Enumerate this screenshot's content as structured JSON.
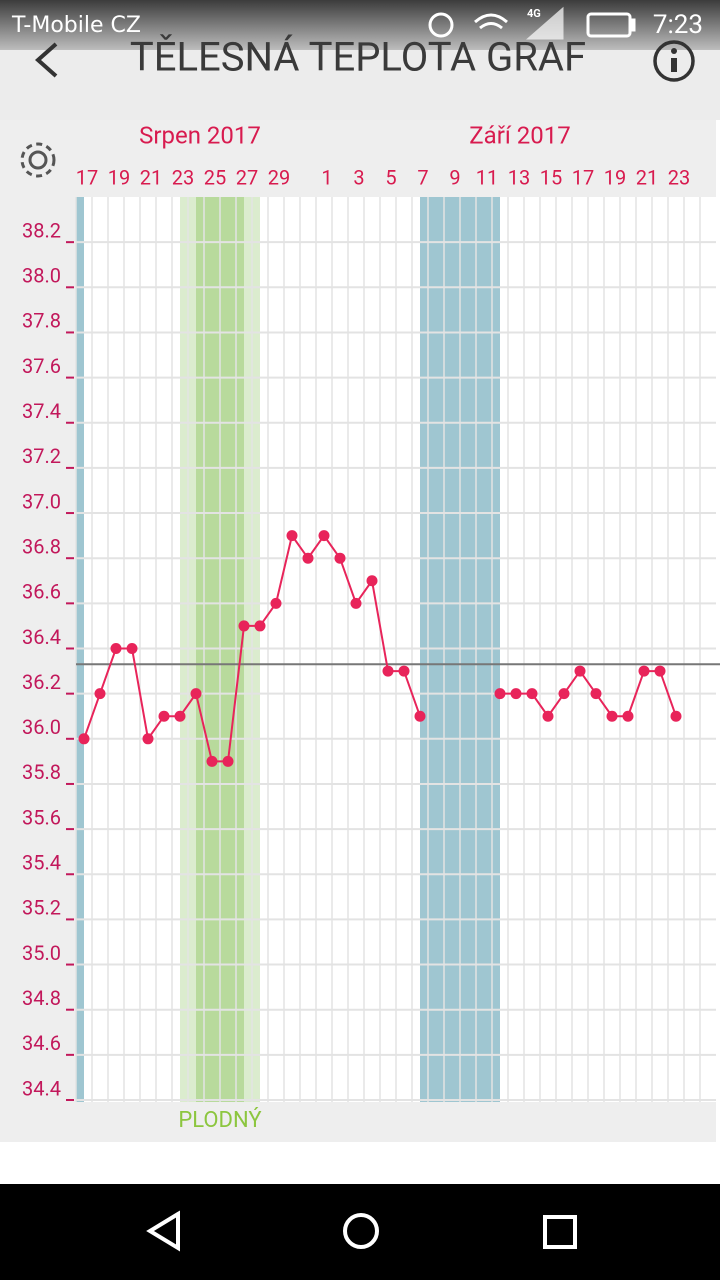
{
  "status_bar": {
    "carrier": "T-Mobile CZ",
    "network": "4G",
    "time": "7:23"
  },
  "header": {
    "title": "TĚLESNÁ TEPLOTA GRAF"
  },
  "chart_data": {
    "type": "line",
    "months": [
      {
        "label": "Srpen 2017",
        "index": 7
      },
      {
        "label": "Září 2017",
        "index": 27
      }
    ],
    "categories": [
      "17",
      null,
      "19",
      null,
      "21",
      null,
      "23",
      null,
      "25",
      null,
      "27",
      null,
      "29",
      null,
      null,
      "1",
      null,
      "3",
      null,
      "5",
      null,
      "7",
      null,
      "9",
      null,
      "11",
      null,
      "13",
      null,
      "15",
      null,
      "17",
      null,
      "19",
      null,
      "21",
      null,
      "23",
      null,
      null
    ],
    "series": [
      {
        "name": "Teplota",
        "color": "#e8245a",
        "values": [
          36.0,
          36.2,
          36.4,
          36.4,
          36.0,
          36.1,
          36.1,
          36.2,
          35.9,
          35.9,
          36.5,
          36.5,
          36.6,
          36.9,
          36.8,
          36.9,
          36.8,
          36.6,
          36.7,
          36.3,
          36.3,
          36.1,
          null,
          null,
          null,
          null,
          36.2,
          36.2,
          36.2,
          36.1,
          36.2,
          36.3,
          36.2,
          36.1,
          36.1,
          36.3,
          36.3,
          36.1,
          null,
          null
        ]
      }
    ],
    "cover_line": 36.33,
    "fertile_band": {
      "label": "PLODNÝ",
      "start": 6,
      "end": 11,
      "peak_start": 7,
      "peak_end": 10,
      "color": "#dbecce",
      "peak_color": "#b8da9c"
    },
    "period_band": {
      "start": 21,
      "end": 26,
      "color": "#9fc6d1"
    },
    "ylim": [
      34.4,
      38.4
    ],
    "yticks": [
      34.4,
      34.6,
      34.8,
      {
        "value": 35,
        "label": "35.0"
      },
      35.2,
      35.4,
      35.6,
      35.8,
      {
        "value": 36,
        "label": "36.0"
      },
      36.2,
      36.4,
      36.6,
      36.8,
      {
        "value": 37,
        "label": "37.0"
      },
      37.2,
      37.4,
      37.6,
      37.8,
      {
        "value": 38,
        "label": "38.0"
      },
      38.2
    ],
    "grid": true
  }
}
